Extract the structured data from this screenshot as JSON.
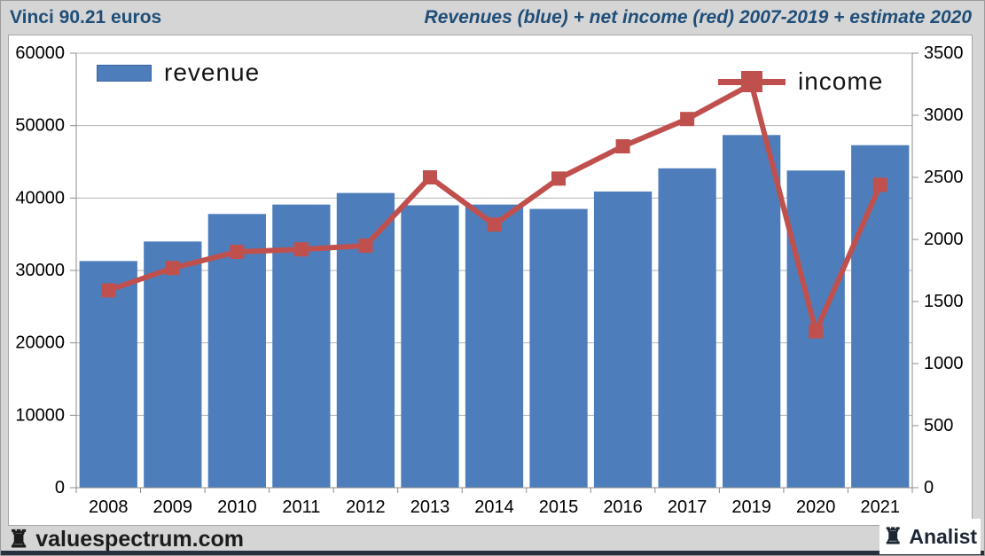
{
  "header": {
    "left_title": "Vinci 90.21 euros",
    "right_title": "Revenues (blue) + net income (red) 2007-2019 + estimate 2020"
  },
  "legend": {
    "revenue_label": "revenue",
    "income_label": "income"
  },
  "chart_data": {
    "type": "bar",
    "subtype": "bar+line dual axis",
    "title": "Revenues (blue) + net income (red) 2007-2019 + estimate 2020",
    "categories": [
      "2008",
      "2009",
      "2010",
      "2011",
      "2012",
      "2013",
      "2014",
      "2015",
      "2016",
      "2017",
      "2019",
      "2020",
      "2021"
    ],
    "series": [
      {
        "name": "revenue",
        "type": "bar",
        "axis": "left",
        "color": "#4d7ebb",
        "values": [
          31300,
          34000,
          37800,
          39100,
          40700,
          39000,
          39100,
          38500,
          40900,
          44100,
          48700,
          43800,
          47300
        ]
      },
      {
        "name": "income",
        "type": "line",
        "axis": "right",
        "color": "#c0504d",
        "values": [
          1590,
          1770,
          1900,
          1920,
          1950,
          2500,
          2120,
          2490,
          2750,
          2970,
          3250,
          1260,
          2440
        ]
      }
    ],
    "left_axis": {
      "min": 0,
      "max": 60000,
      "step": 10000,
      "ticks": [
        "0",
        "10000",
        "20000",
        "30000",
        "40000",
        "50000",
        "60000"
      ]
    },
    "right_axis": {
      "min": 0,
      "max": 3500,
      "step": 500,
      "ticks": [
        "0",
        "500",
        "1000",
        "1500",
        "2000",
        "2500",
        "3000",
        "3500"
      ]
    },
    "grid": true,
    "legend_position": "top"
  },
  "footer": {
    "brand": "valuespectrum.com",
    "badge": "Analist",
    "rook_icon": "♜"
  },
  "colors": {
    "bar_blue": "#4d7ebb",
    "line_red": "#c0504d",
    "title_navy": "#1f4e79",
    "page_bg": "#d5d5d5",
    "grid_gray": "#b3b3b3",
    "axis_gray": "#8c8c8c"
  }
}
